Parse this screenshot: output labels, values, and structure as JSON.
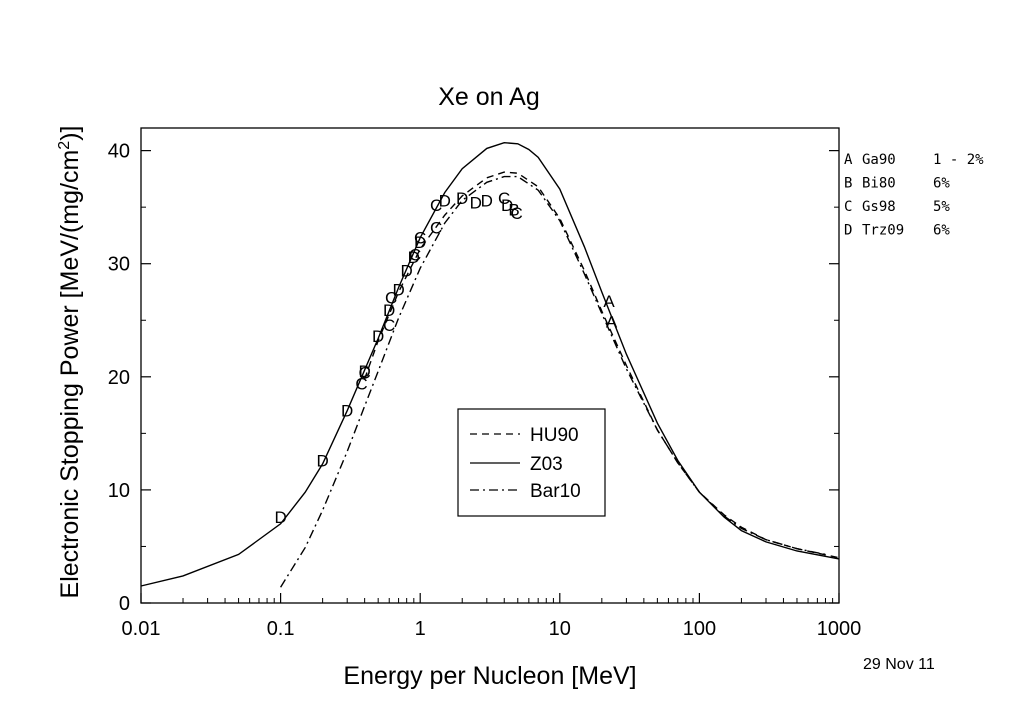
{
  "chart_data": {
    "type": "line",
    "title": "Xe on Ag",
    "xlabel": "Energy per Nucleon [MeV]",
    "ylabel_main": "Electronic Stopping Power [MeV/(mg/cm",
    "ylabel_sup": "2",
    "ylabel_tail": ")]",
    "x_scale": "log",
    "xlim": [
      0.01,
      1000
    ],
    "ylim": [
      0,
      42
    ],
    "x_ticks": [
      {
        "value": 0.01,
        "label": "0.01"
      },
      {
        "value": 0.1,
        "label": "0.1"
      },
      {
        "value": 1,
        "label": "1"
      },
      {
        "value": 10,
        "label": "10"
      },
      {
        "value": 100,
        "label": "100"
      },
      {
        "value": 1000,
        "label": "1000"
      }
    ],
    "y_ticks": [
      {
        "value": 0,
        "label": "0"
      },
      {
        "value": 10,
        "label": "10"
      },
      {
        "value": 20,
        "label": "20"
      },
      {
        "value": 30,
        "label": "30"
      },
      {
        "value": 40,
        "label": "40"
      }
    ],
    "grid": false,
    "legend_position": "lower-center",
    "series": [
      {
        "name": "HU90",
        "dash": "dashed",
        "x": [
          0.4,
          0.5,
          0.7,
          1,
          1.5,
          2,
          3,
          4,
          5,
          7,
          10,
          15,
          20,
          30,
          50,
          70,
          100,
          150,
          200,
          300,
          500,
          1000
        ],
        "y": [
          19.8,
          23.2,
          27.5,
          31.3,
          34.3,
          36.0,
          37.6,
          38.1,
          38.0,
          36.8,
          34.0,
          29.4,
          25.8,
          21.0,
          15.3,
          12.4,
          9.8,
          7.8,
          6.7,
          5.6,
          4.8,
          4.0
        ]
      },
      {
        "name": "Z03",
        "dash": "solid",
        "x": [
          0.01,
          0.02,
          0.05,
          0.1,
          0.15,
          0.2,
          0.3,
          0.5,
          0.7,
          1,
          1.5,
          2,
          3,
          4,
          5,
          6,
          7,
          10,
          15,
          20,
          30,
          50,
          70,
          100,
          150,
          200,
          300,
          500,
          1000
        ],
        "y": [
          1.5,
          2.4,
          4.3,
          7.0,
          9.8,
          12.3,
          17.0,
          23.4,
          27.9,
          32.3,
          36.3,
          38.4,
          40.2,
          40.7,
          40.6,
          40.1,
          39.4,
          36.6,
          31.5,
          27.5,
          22.0,
          15.9,
          12.6,
          9.8,
          7.6,
          6.4,
          5.4,
          4.6,
          3.9
        ]
      },
      {
        "name": "Bar10",
        "dash": "dashdot",
        "x": [
          0.1,
          0.15,
          0.2,
          0.3,
          0.4,
          0.5,
          0.7,
          1,
          1.5,
          2,
          3,
          4,
          5,
          7,
          10,
          15,
          20,
          30,
          50,
          70,
          100,
          150,
          200,
          300,
          500,
          800
        ],
        "y": [
          1.4,
          4.9,
          8.2,
          13.4,
          17.4,
          20.5,
          25.2,
          29.6,
          33.6,
          35.6,
          37.2,
          37.7,
          37.7,
          36.5,
          33.8,
          29.1,
          25.6,
          20.7,
          15.3,
          12.4,
          9.8,
          7.7,
          6.6,
          5.6,
          4.8,
          4.3
        ]
      }
    ],
    "points": [
      {
        "x": 0.1,
        "y": 7.6,
        "label": "D"
      },
      {
        "x": 0.2,
        "y": 12.6,
        "label": "D"
      },
      {
        "x": 0.3,
        "y": 17.0,
        "label": "D"
      },
      {
        "x": 0.38,
        "y": 19.4,
        "label": "C"
      },
      {
        "x": 0.4,
        "y": 20.4,
        "label": "C"
      },
      {
        "x": 0.4,
        "y": 20.5,
        "label": "D"
      },
      {
        "x": 0.5,
        "y": 23.6,
        "label": "D"
      },
      {
        "x": 0.6,
        "y": 24.6,
        "label": "C"
      },
      {
        "x": 0.6,
        "y": 25.9,
        "label": "D"
      },
      {
        "x": 0.62,
        "y": 27.0,
        "label": "C"
      },
      {
        "x": 0.7,
        "y": 27.7,
        "label": "D"
      },
      {
        "x": 0.8,
        "y": 29.4,
        "label": "D"
      },
      {
        "x": 0.9,
        "y": 30.6,
        "label": "D"
      },
      {
        "x": 0.92,
        "y": 30.8,
        "label": "C"
      },
      {
        "x": 1.0,
        "y": 31.9,
        "label": "D"
      },
      {
        "x": 1.0,
        "y": 32.3,
        "label": "C"
      },
      {
        "x": 1.3,
        "y": 33.2,
        "label": "C"
      },
      {
        "x": 1.3,
        "y": 35.2,
        "label": "C"
      },
      {
        "x": 1.5,
        "y": 35.6,
        "label": "D"
      },
      {
        "x": 2.0,
        "y": 35.8,
        "label": "D"
      },
      {
        "x": 2.5,
        "y": 35.4,
        "label": "D"
      },
      {
        "x": 3.0,
        "y": 35.6,
        "label": "D"
      },
      {
        "x": 4.0,
        "y": 35.8,
        "label": "C"
      },
      {
        "x": 4.2,
        "y": 35.2,
        "label": "D"
      },
      {
        "x": 4.7,
        "y": 34.8,
        "label": "B"
      },
      {
        "x": 4.9,
        "y": 34.5,
        "label": "C"
      },
      {
        "x": 22.5,
        "y": 26.7,
        "label": "A"
      },
      {
        "x": 23.5,
        "y": 24.9,
        "label": "A"
      }
    ],
    "source_key": [
      {
        "letter": "A",
        "ref": "Ga90",
        "error": "1 - 2%"
      },
      {
        "letter": "B",
        "ref": "Bi80",
        "error": "6%"
      },
      {
        "letter": "C",
        "ref": "Gs98",
        "error": "5%"
      },
      {
        "letter": "D",
        "ref": "Trz09",
        "error": "6%"
      }
    ],
    "date_stamp": "29 Nov 11"
  }
}
